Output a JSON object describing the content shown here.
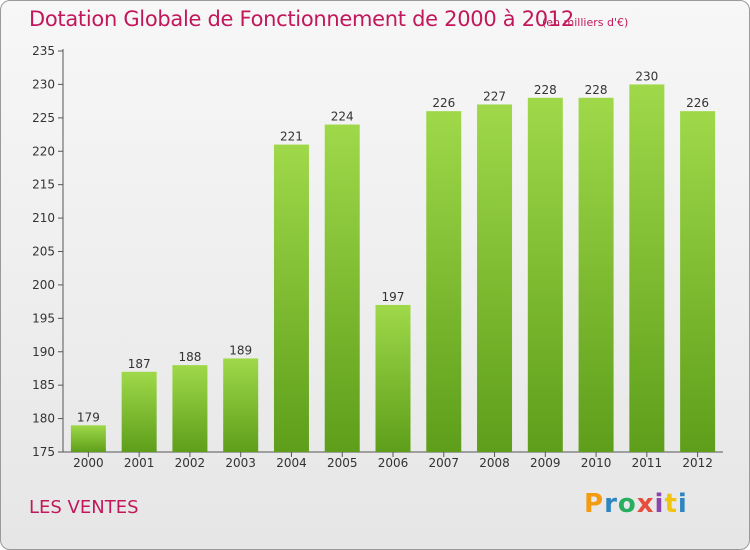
{
  "title": "Dotation Globale de Fonctionnement de 2000 à 2012",
  "subtitle": "(en milliers d'€)",
  "commune": "LES VENTES",
  "logo": {
    "letters": [
      "P",
      "r",
      "o",
      "x",
      "i",
      "t",
      "i"
    ],
    "colors": [
      "#f39c12",
      "#2e86c1",
      "#27ae60",
      "#e74c3c",
      "#8e44ad",
      "#f1c40f",
      "#2e86c1"
    ]
  },
  "colors": {
    "title": "#c2185b",
    "bar_top": "#9fd94a",
    "bar_bottom": "#5e9e1a",
    "axis": "#555555"
  },
  "chart_data": {
    "type": "bar",
    "title": "Dotation Globale de Fonctionnement de 2000 à 2012",
    "subtitle": "(en milliers d'€)",
    "categories": [
      "2000",
      "2001",
      "2002",
      "2003",
      "2004",
      "2005",
      "2006",
      "2007",
      "2008",
      "2009",
      "2010",
      "2011",
      "2012"
    ],
    "values": [
      179,
      187,
      188,
      189,
      221,
      224,
      197,
      226,
      227,
      228,
      228,
      230,
      226
    ],
    "ylim": [
      175,
      235
    ],
    "yticks": [
      175,
      180,
      185,
      190,
      195,
      200,
      205,
      210,
      215,
      220,
      225,
      230,
      235
    ],
    "grid": false,
    "xlabel": "",
    "ylabel": ""
  }
}
